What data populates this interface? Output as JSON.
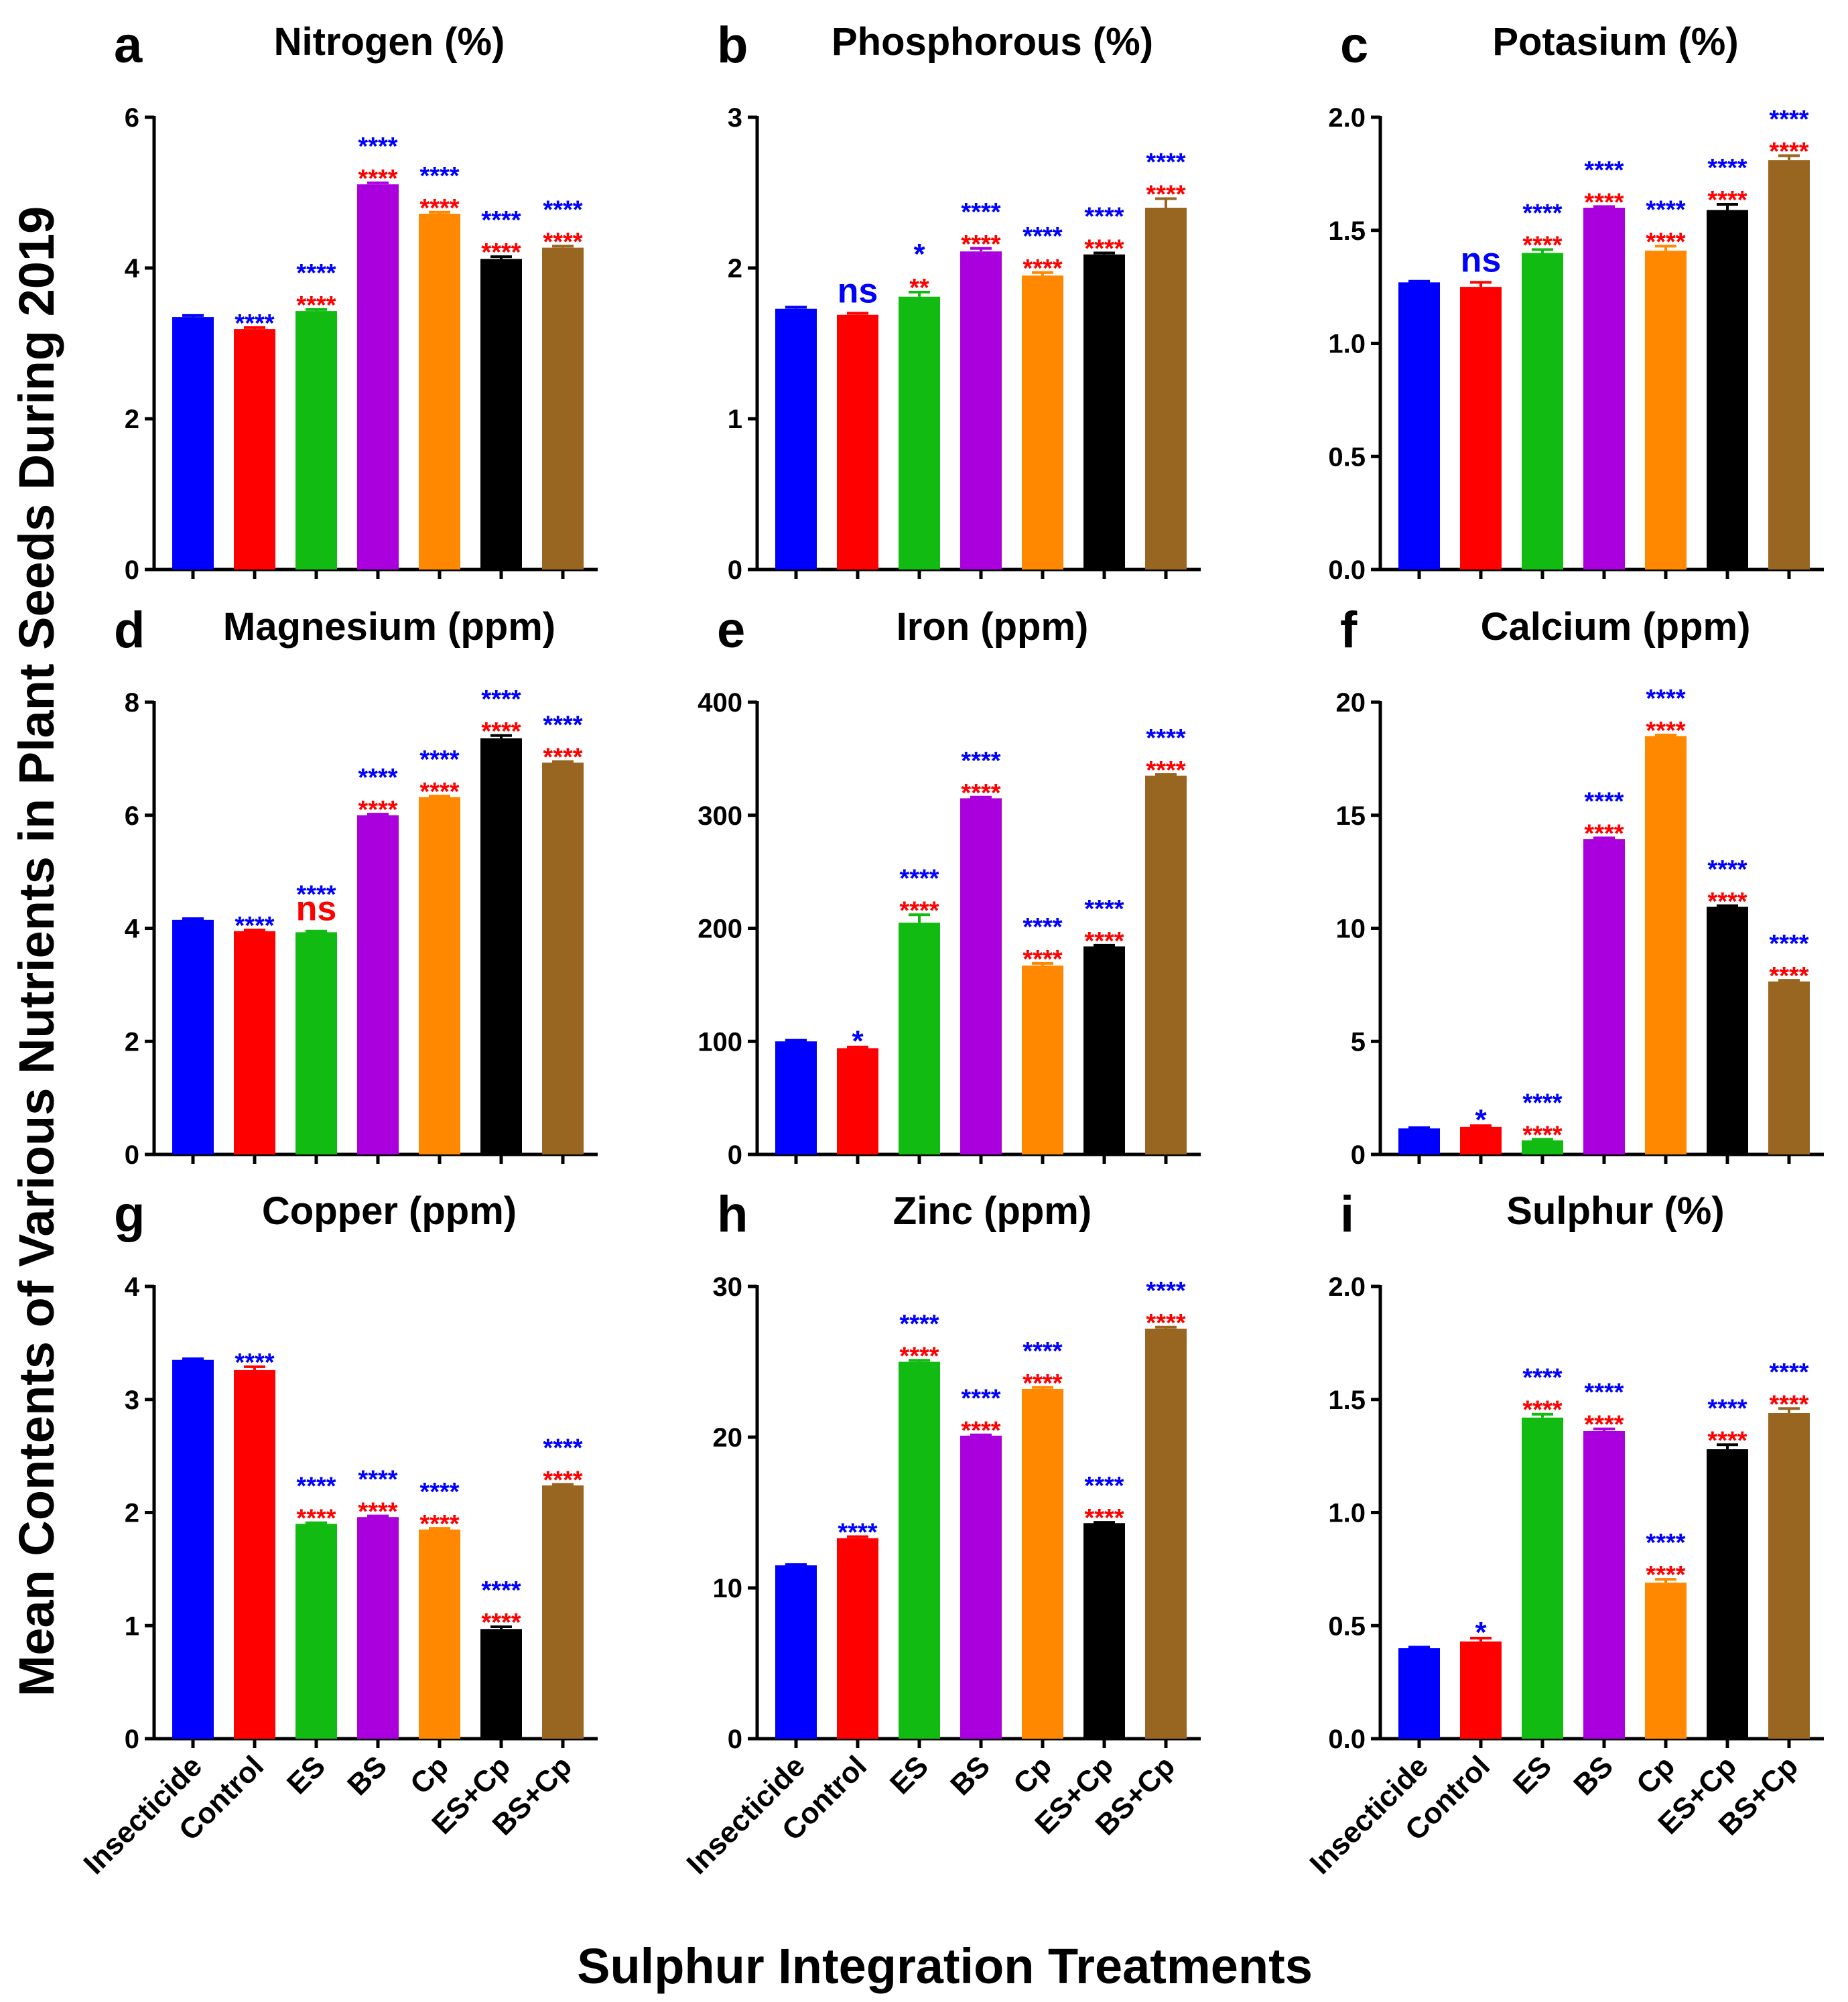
{
  "ylabel": "Mean Contents of Various Nutrients in Plant Seeds During 2019",
  "xlabel": "Sulphur Integration Treatments",
  "treatments": [
    "Insecticide",
    "Control",
    "ES",
    "BS",
    "Cp",
    "ES+Cp",
    "BS+Cp"
  ],
  "colors": [
    "#0000ff",
    "#ff0000",
    "#11bb11",
    "#aa00dd",
    "#ff8800",
    "#000000",
    "#996622"
  ],
  "sig_colors": {
    "blue": "#0000ff",
    "red": "#ff0000"
  },
  "chart_data": [
    {
      "panel": "a",
      "type": "bar",
      "title": "Nitrogen (%)",
      "categories": [
        "Insecticide",
        "Control",
        "ES",
        "BS",
        "Cp",
        "ES+Cp",
        "BS+Cp"
      ],
      "values": [
        3.35,
        3.19,
        3.43,
        5.11,
        4.72,
        4.12,
        4.27
      ],
      "errors": [
        0.02,
        0.02,
        0.02,
        0.02,
        0.02,
        0.03,
        0.02
      ],
      "ylim": [
        0,
        6
      ],
      "yticks": [
        "0",
        "2",
        "4",
        "6"
      ],
      "ytick_values": [
        0,
        2,
        4,
        6
      ],
      "sig_blue": [
        "",
        "****",
        "****",
        "****",
        "****",
        "****",
        "****"
      ],
      "sig_red": [
        "",
        "",
        "****",
        "****",
        "****",
        "****",
        "****"
      ]
    },
    {
      "panel": "b",
      "type": "bar",
      "title": "Phosphorous (%)",
      "categories": [
        "Insecticide",
        "Control",
        "ES",
        "BS",
        "Cp",
        "ES+Cp",
        "BS+Cp"
      ],
      "values": [
        1.73,
        1.69,
        1.81,
        2.11,
        1.95,
        2.09,
        2.4
      ],
      "errors": [
        0.01,
        0.01,
        0.03,
        0.02,
        0.02,
        0.01,
        0.06
      ],
      "ylim": [
        0,
        3
      ],
      "yticks": [
        "0",
        "1",
        "2",
        "3"
      ],
      "ytick_values": [
        0,
        1,
        2,
        3
      ],
      "sig_blue": [
        "",
        "ns",
        "*",
        "****",
        "****",
        "****",
        "****"
      ],
      "sig_red": [
        "",
        "",
        "**",
        "****",
        "****",
        "****",
        "****"
      ]
    },
    {
      "panel": "c",
      "type": "bar",
      "title": "Potasium (%)",
      "categories": [
        "Insecticide",
        "Control",
        "ES",
        "BS",
        "Cp",
        "ES+Cp",
        "BS+Cp"
      ],
      "values": [
        1.27,
        1.25,
        1.4,
        1.6,
        1.41,
        1.59,
        1.81
      ],
      "errors": [
        0.005,
        0.02,
        0.015,
        0.005,
        0.02,
        0.025,
        0.02
      ],
      "ylim": [
        0,
        2
      ],
      "yticks": [
        "0.0",
        "0.5",
        "1.0",
        "1.5",
        "2.0"
      ],
      "ytick_values": [
        0,
        0.5,
        1,
        1.5,
        2
      ],
      "sig_blue": [
        "",
        "ns",
        "****",
        "****",
        "****",
        "****",
        "****"
      ],
      "sig_red": [
        "",
        "",
        "****",
        "****",
        "****",
        "****",
        "****"
      ]
    },
    {
      "panel": "d",
      "type": "bar",
      "title": "Magnesium (ppm)",
      "categories": [
        "Insecticide",
        "Control",
        "ES",
        "BS",
        "Cp",
        "ES+Cp",
        "BS+Cp"
      ],
      "values": [
        4.15,
        3.95,
        3.93,
        6.0,
        6.32,
        7.36,
        6.93
      ],
      "errors": [
        0.02,
        0.02,
        0.02,
        0.02,
        0.02,
        0.05,
        0.02
      ],
      "ylim": [
        0,
        8
      ],
      "yticks": [
        "0",
        "2",
        "4",
        "6",
        "8"
      ],
      "ytick_values": [
        0,
        2,
        4,
        6,
        8
      ],
      "sig_blue": [
        "",
        "****",
        "****",
        "****",
        "****",
        "****",
        "****"
      ],
      "sig_red": [
        "",
        "",
        "ns",
        "****",
        "****",
        "****",
        "****"
      ]
    },
    {
      "panel": "e",
      "type": "bar",
      "title": "Iron (ppm)",
      "categories": [
        "Insecticide",
        "Control",
        "ES",
        "BS",
        "Cp",
        "ES+Cp",
        "BS+Cp"
      ],
      "values": [
        100,
        94,
        205,
        315,
        167,
        184,
        335
      ],
      "errors": [
        1,
        1,
        7,
        1,
        2,
        1,
        1
      ],
      "ylim": [
        0,
        400
      ],
      "yticks": [
        "0",
        "100",
        "200",
        "300",
        "400"
      ],
      "ytick_values": [
        0,
        100,
        200,
        300,
        400
      ],
      "sig_blue": [
        "",
        "*",
        "****",
        "****",
        "****",
        "****",
        "****"
      ],
      "sig_red": [
        "",
        "",
        "****",
        "****",
        "****",
        "****",
        "****"
      ]
    },
    {
      "panel": "f",
      "type": "bar",
      "title": "Calcium (ppm)",
      "categories": [
        "Insecticide",
        "Control",
        "ES",
        "BS",
        "Cp",
        "ES+Cp",
        "BS+Cp"
      ],
      "values": [
        1.15,
        1.22,
        0.62,
        13.95,
        18.5,
        10.95,
        7.65
      ],
      "errors": [
        0.03,
        0.05,
        0.05,
        0.05,
        0.05,
        0.05,
        0.05
      ],
      "ylim": [
        0,
        20
      ],
      "yticks": [
        "0",
        "5",
        "10",
        "15",
        "20"
      ],
      "ytick_values": [
        0,
        5,
        10,
        15,
        20
      ],
      "sig_blue": [
        "",
        "*",
        "****",
        "****",
        "****",
        "****",
        "****"
      ],
      "sig_red": [
        "",
        "",
        "****",
        "****",
        "****",
        "****",
        "****"
      ]
    },
    {
      "panel": "g",
      "type": "bar",
      "title": "Copper (ppm)",
      "categories": [
        "Insecticide",
        "Control",
        "ES",
        "BS",
        "Cp",
        "ES+Cp",
        "BS+Cp"
      ],
      "values": [
        3.35,
        3.26,
        1.9,
        1.96,
        1.85,
        0.97,
        2.24
      ],
      "errors": [
        0.01,
        0.03,
        0.01,
        0.01,
        0.01,
        0.02,
        0.01
      ],
      "ylim": [
        0,
        4
      ],
      "yticks": [
        "0",
        "1",
        "2",
        "3",
        "4"
      ],
      "ytick_values": [
        0,
        1,
        2,
        3,
        4
      ],
      "sig_blue": [
        "",
        "****",
        "****",
        "****",
        "****",
        "****",
        "****"
      ],
      "sig_red": [
        "",
        "",
        "****",
        "****",
        "****",
        "****",
        "****"
      ]
    },
    {
      "panel": "h",
      "type": "bar",
      "title": "Zinc (ppm)",
      "categories": [
        "Insecticide",
        "Control",
        "ES",
        "BS",
        "Cp",
        "ES+Cp",
        "BS+Cp"
      ],
      "values": [
        11.5,
        13.3,
        25.0,
        20.1,
        23.2,
        14.3,
        27.2
      ],
      "errors": [
        0.05,
        0.1,
        0.1,
        0.05,
        0.1,
        0.05,
        0.1
      ],
      "ylim": [
        0,
        30
      ],
      "yticks": [
        "0",
        "10",
        "20",
        "30"
      ],
      "ytick_values": [
        0,
        10,
        20,
        30
      ],
      "sig_blue": [
        "",
        "****",
        "****",
        "****",
        "****",
        "****",
        "****"
      ],
      "sig_red": [
        "",
        "",
        "****",
        "****",
        "****",
        "****",
        "****"
      ]
    },
    {
      "panel": "i",
      "type": "bar",
      "title": "Sulphur (%)",
      "categories": [
        "Insecticide",
        "Control",
        "ES",
        "BS",
        "Cp",
        "ES+Cp",
        "BS+Cp"
      ],
      "values": [
        0.4,
        0.43,
        1.42,
        1.36,
        0.69,
        1.28,
        1.44
      ],
      "errors": [
        0.005,
        0.015,
        0.015,
        0.01,
        0.015,
        0.02,
        0.02
      ],
      "ylim": [
        0,
        2
      ],
      "yticks": [
        "0.0",
        "0.5",
        "1.0",
        "1.5",
        "2.0"
      ],
      "ytick_values": [
        0,
        0.5,
        1,
        1.5,
        2
      ],
      "sig_blue": [
        "",
        "*",
        "****",
        "****",
        "****",
        "****",
        "****"
      ],
      "sig_red": [
        "",
        "",
        "****",
        "****",
        "****",
        "****",
        "****"
      ]
    }
  ]
}
